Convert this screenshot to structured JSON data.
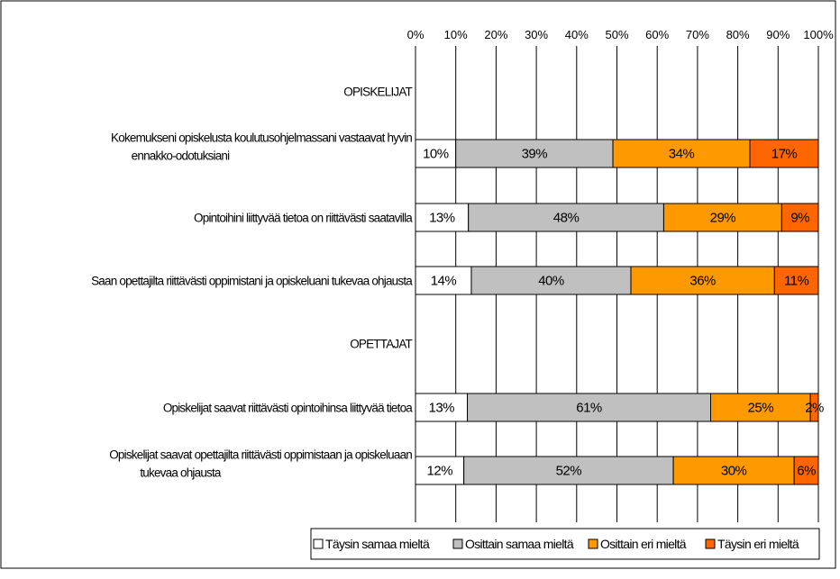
{
  "chart_data": {
    "type": "bar",
    "orientation": "horizontal",
    "stacked": "percent",
    "xlim": [
      0,
      100
    ],
    "x_ticks": [
      "0%",
      "10%",
      "20%",
      "30%",
      "40%",
      "50%",
      "60%",
      "70%",
      "80%",
      "90%",
      "100%"
    ],
    "x_axis_position": "top",
    "grid": true,
    "legend": "bottom",
    "title": "",
    "xlabel": "",
    "ylabel": "",
    "colors": [
      "#ffffff",
      "#c0c0c0",
      "#ff9900",
      "#ff6600"
    ],
    "series": [
      {
        "name": "Täysin samaa mieltä"
      },
      {
        "name": "Osittain samaa mieltä"
      },
      {
        "name": "Osittain eri mieltä"
      },
      {
        "name": "Täysin eri mieltä"
      }
    ],
    "rows": [
      {
        "kind": "section",
        "label": "OPISKELIJAT"
      },
      {
        "kind": "bar",
        "label_lines": [
          "Kokemukseni opiskelusta koulutusohjelmassani vastaavat hyvin",
          "ennakko-odotuksiani"
        ],
        "values": [
          10,
          39,
          34,
          17
        ],
        "labels": [
          "10%",
          "39%",
          "34%",
          "17%"
        ]
      },
      {
        "kind": "bar",
        "label_lines": [
          "Opintoihini liittyvää tietoa on riittävästi saatavilla"
        ],
        "values": [
          13,
          48,
          29,
          9
        ],
        "labels": [
          "13%",
          "48%",
          "29%",
          "9%"
        ]
      },
      {
        "kind": "bar",
        "label_lines": [
          "Saan opettajilta riittävästi oppimistani ja opiskeluani tukevaa ohjausta"
        ],
        "values": [
          14,
          40,
          36,
          11
        ],
        "labels": [
          "14%",
          "40%",
          "36%",
          "11%"
        ]
      },
      {
        "kind": "section",
        "label": "OPETTAJAT"
      },
      {
        "kind": "bar",
        "label_lines": [
          "Opiskelijat saavat riittävästi opintoihinsa liittyvää tietoa"
        ],
        "values": [
          13,
          61,
          25,
          2
        ],
        "labels": [
          "13%",
          "61%",
          "25%",
          "2%"
        ]
      },
      {
        "kind": "bar",
        "label_lines": [
          "Opiskelijat saavat opettajilta riittävästi oppimistaan ja opiskeluaan",
          "tukevaa ohjausta"
        ],
        "values": [
          12,
          52,
          30,
          6
        ],
        "labels": [
          "12%",
          "52%",
          "30%",
          "6%"
        ]
      }
    ]
  }
}
